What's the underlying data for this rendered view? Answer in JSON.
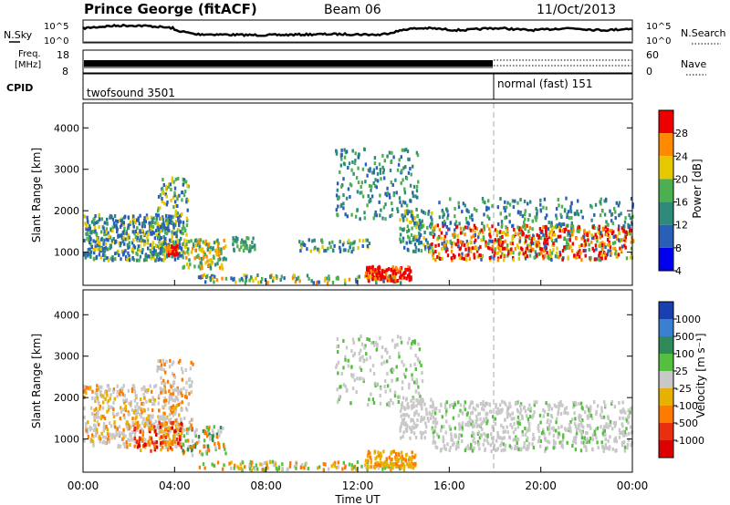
{
  "header": {
    "station": "Prince George (fitACF)",
    "beam": "Beam 06",
    "date": "11/Oct/2013"
  },
  "noise_panel": {
    "left_label": "N.Sky",
    "right_label": "N.Search",
    "left_ticks": [
      "10^5",
      "10^0"
    ],
    "right_ticks": [
      "10^5",
      "10^0"
    ]
  },
  "freq_panel": {
    "left_label_1": "Freq.",
    "left_label_2": "[MHz]",
    "right_label": "Nave",
    "left_ticks": [
      "18",
      "8"
    ],
    "right_ticks": [
      "60",
      "0"
    ]
  },
  "cpid_panel": {
    "label": "CPID",
    "mode1": "twofsound 3501",
    "mode2": "normal (fast) 151"
  },
  "chart_data": [
    {
      "type": "heatmap",
      "name": "power",
      "ylabel": "Slant Range [km]",
      "ylim": [
        200,
        4600
      ],
      "yticks": [
        "1000",
        "2000",
        "3000",
        "4000"
      ],
      "colorbar_label": "Power [dB]",
      "colorbar_ticks": [
        "4",
        "8",
        "12",
        "16",
        "20",
        "24",
        "28"
      ],
      "colors": [
        "#0000ee",
        "#2a5fb8",
        "#2e8b7a",
        "#4caf50",
        "#e6c800",
        "#ff8a00",
        "#ee0000"
      ]
    },
    {
      "type": "heatmap",
      "name": "velocity",
      "ylabel": "Slant Range [km]",
      "ylim": [
        200,
        4600
      ],
      "yticks": [
        "1000",
        "2000",
        "3000",
        "4000"
      ],
      "colorbar_label": "Velocity [m s⁻¹]",
      "colorbar_ticks": [
        "1000",
        "500",
        "100",
        "25",
        "-25",
        "-100",
        "-500",
        "-1000"
      ],
      "colors": [
        "#1a3fb0",
        "#3a7fd0",
        "#2e8b57",
        "#55c040",
        "#c8c8c8",
        "#e8b000",
        "#ff7a00",
        "#e83010",
        "#dd0000"
      ]
    }
  ],
  "x_axis": {
    "label": "Time UT",
    "ticks": [
      "00:00",
      "04:00",
      "08:00",
      "12:00",
      "16:00",
      "20:00",
      "00:00"
    ]
  }
}
